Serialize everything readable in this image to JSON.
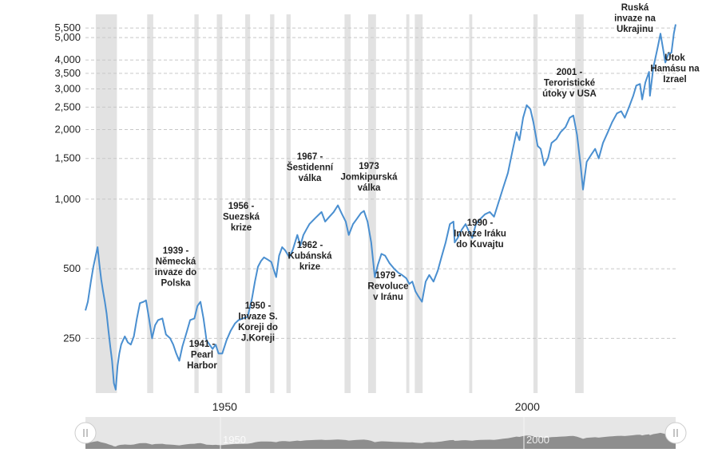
{
  "chart_data": {
    "type": "line",
    "title": "",
    "xlabel": "",
    "ylabel": "",
    "y_scale": "log",
    "grid": "horizontal dashed",
    "xlim": [
      1927,
      2024.5
    ],
    "ylim": [
      145,
      6300
    ],
    "x_ticks": [
      "1950",
      "2000"
    ],
    "y_ticks": [
      {
        "value": 250,
        "label": "250"
      },
      {
        "value": 500,
        "label": "500"
      },
      {
        "value": 1000,
        "label": "1,000"
      },
      {
        "value": 1500,
        "label": "1,500"
      },
      {
        "value": 2000,
        "label": "2,000"
      },
      {
        "value": 2500,
        "label": "2,500"
      },
      {
        "value": 3000,
        "label": "3,000"
      },
      {
        "value": 3500,
        "label": "3,500"
      },
      {
        "value": 4000,
        "label": "4,000"
      },
      {
        "value": 5000,
        "label": "5,000"
      },
      {
        "value": 5500,
        "label": "5,500"
      }
    ],
    "line_color": "#4a8fd0",
    "recession_color": "#e2e2e2",
    "recessions": [
      [
        1928.7,
        1932.2
      ],
      [
        1937.2,
        1938.2
      ],
      [
        1945.0,
        1945.7
      ],
      [
        1948.7,
        1949.6
      ],
      [
        1953.4,
        1954.2
      ],
      [
        1957.5,
        1958.2
      ],
      [
        1960.2,
        1960.9
      ],
      [
        1969.8,
        1970.8
      ],
      [
        1973.7,
        1975.0
      ],
      [
        1980.0,
        1980.5
      ],
      [
        1981.4,
        1982.7
      ],
      [
        1990.4,
        1990.9
      ],
      [
        2001.0,
        2001.7
      ],
      [
        2007.9,
        2009.3
      ]
    ],
    "series": [
      {
        "values": [
          [
            1927.0,
            330
          ],
          [
            1927.4,
            360
          ],
          [
            1927.9,
            440
          ],
          [
            1928.3,
            510
          ],
          [
            1928.7,
            570
          ],
          [
            1929.0,
            620
          ],
          [
            1929.3,
            525
          ],
          [
            1929.6,
            450
          ],
          [
            1929.9,
            400
          ],
          [
            1930.2,
            360
          ],
          [
            1930.5,
            320
          ],
          [
            1930.8,
            270
          ],
          [
            1931.1,
            230
          ],
          [
            1931.4,
            200
          ],
          [
            1931.7,
            160
          ],
          [
            1932.0,
            150
          ],
          [
            1932.3,
            190
          ],
          [
            1932.6,
            215
          ],
          [
            1932.9,
            235
          ],
          [
            1933.2,
            245
          ],
          [
            1933.5,
            255
          ],
          [
            1934.0,
            240
          ],
          [
            1934.5,
            235
          ],
          [
            1935.0,
            255
          ],
          [
            1935.5,
            305
          ],
          [
            1936.0,
            355
          ],
          [
            1936.6,
            360
          ],
          [
            1937.0,
            365
          ],
          [
            1937.5,
            305
          ],
          [
            1938.0,
            250
          ],
          [
            1938.5,
            285
          ],
          [
            1939.0,
            300
          ],
          [
            1939.7,
            305
          ],
          [
            1940.3,
            260
          ],
          [
            1941.0,
            250
          ],
          [
            1941.5,
            235
          ],
          [
            1942.0,
            215
          ],
          [
            1942.5,
            200
          ],
          [
            1943.0,
            230
          ],
          [
            1943.7,
            265
          ],
          [
            1944.3,
            300
          ],
          [
            1945.0,
            305
          ],
          [
            1945.5,
            345
          ],
          [
            1946.0,
            360
          ],
          [
            1946.5,
            305
          ],
          [
            1947.0,
            245
          ],
          [
            1947.5,
            235
          ],
          [
            1948.0,
            225
          ],
          [
            1948.5,
            235
          ],
          [
            1949.0,
            215
          ],
          [
            1949.6,
            215
          ],
          [
            1950.3,
            245
          ],
          [
            1951.0,
            270
          ],
          [
            1951.7,
            290
          ],
          [
            1952.3,
            300
          ],
          [
            1953.0,
            305
          ],
          [
            1953.8,
            310
          ],
          [
            1954.5,
            370
          ],
          [
            1955.0,
            440
          ],
          [
            1955.5,
            510
          ],
          [
            1956.0,
            540
          ],
          [
            1956.5,
            560
          ],
          [
            1957.0,
            550
          ],
          [
            1957.7,
            535
          ],
          [
            1958.5,
            460
          ],
          [
            1959.0,
            570
          ],
          [
            1959.5,
            620
          ],
          [
            1960.0,
            600
          ],
          [
            1960.7,
            560
          ],
          [
            1961.3,
            610
          ],
          [
            1962.0,
            700
          ],
          [
            1962.5,
            630
          ],
          [
            1963.0,
            700
          ],
          [
            1963.5,
            740
          ],
          [
            1964.0,
            780
          ],
          [
            1965.0,
            830
          ],
          [
            1966.0,
            880
          ],
          [
            1966.6,
            800
          ],
          [
            1967.3,
            840
          ],
          [
            1968.0,
            880
          ],
          [
            1968.7,
            940
          ],
          [
            1969.3,
            870
          ],
          [
            1970.0,
            800
          ],
          [
            1970.5,
            700
          ],
          [
            1971.2,
            780
          ],
          [
            1971.8,
            820
          ],
          [
            1972.5,
            870
          ],
          [
            1973.0,
            890
          ],
          [
            1973.6,
            800
          ],
          [
            1974.2,
            650
          ],
          [
            1974.8,
            460
          ],
          [
            1975.3,
            520
          ],
          [
            1975.9,
            580
          ],
          [
            1976.5,
            570
          ],
          [
            1977.2,
            530
          ],
          [
            1978.0,
            500
          ],
          [
            1978.7,
            480
          ],
          [
            1979.3,
            470
          ],
          [
            1980.0,
            455
          ],
          [
            1980.5,
            430
          ],
          [
            1981.0,
            440
          ],
          [
            1981.5,
            400
          ],
          [
            1982.0,
            380
          ],
          [
            1982.6,
            360
          ],
          [
            1983.2,
            440
          ],
          [
            1983.8,
            470
          ],
          [
            1984.5,
            440
          ],
          [
            1985.2,
            490
          ],
          [
            1985.8,
            560
          ],
          [
            1986.5,
            650
          ],
          [
            1987.2,
            780
          ],
          [
            1987.8,
            800
          ],
          [
            1988.0,
            650
          ],
          [
            1988.5,
            680
          ],
          [
            1989.2,
            740
          ],
          [
            1989.8,
            780
          ],
          [
            1990.4,
            720
          ],
          [
            1990.9,
            680
          ],
          [
            1991.5,
            780
          ],
          [
            1992.2,
            820
          ],
          [
            1993.0,
            860
          ],
          [
            1993.8,
            880
          ],
          [
            1994.5,
            840
          ],
          [
            1995.2,
            960
          ],
          [
            1996.0,
            1120
          ],
          [
            1996.8,
            1300
          ],
          [
            1997.5,
            1600
          ],
          [
            1998.2,
            1950
          ],
          [
            1998.7,
            1800
          ],
          [
            1999.3,
            2250
          ],
          [
            1999.9,
            2550
          ],
          [
            2000.5,
            2450
          ],
          [
            2001.0,
            2150
          ],
          [
            2001.7,
            1700
          ],
          [
            2002.2,
            1650
          ],
          [
            2002.8,
            1400
          ],
          [
            2003.4,
            1500
          ],
          [
            2004.0,
            1750
          ],
          [
            2004.8,
            1820
          ],
          [
            2005.5,
            1950
          ],
          [
            2006.3,
            2050
          ],
          [
            2007.0,
            2250
          ],
          [
            2007.6,
            2300
          ],
          [
            2008.2,
            1900
          ],
          [
            2008.8,
            1400
          ],
          [
            2009.2,
            1100
          ],
          [
            2009.8,
            1450
          ],
          [
            2010.5,
            1550
          ],
          [
            2011.2,
            1650
          ],
          [
            2011.8,
            1500
          ],
          [
            2012.5,
            1750
          ],
          [
            2013.3,
            1950
          ],
          [
            2014.0,
            2150
          ],
          [
            2014.8,
            2350
          ],
          [
            2015.5,
            2400
          ],
          [
            2016.1,
            2250
          ],
          [
            2016.8,
            2500
          ],
          [
            2017.5,
            2800
          ],
          [
            2018.0,
            3100
          ],
          [
            2018.6,
            3150
          ],
          [
            2018.97,
            2700
          ],
          [
            2019.5,
            3200
          ],
          [
            2020.1,
            3550
          ],
          [
            2020.25,
            2800
          ],
          [
            2020.8,
            3700
          ],
          [
            2021.5,
            4500
          ],
          [
            2021.99,
            5200
          ],
          [
            2022.4,
            4500
          ],
          [
            2022.8,
            3900
          ],
          [
            2023.3,
            4250
          ],
          [
            2023.8,
            4300
          ],
          [
            2024.2,
            5200
          ],
          [
            2024.5,
            5700
          ]
        ]
      }
    ],
    "annotations": [
      {
        "lines": [
          "1939 -",
          "Německá",
          "invaze do",
          "Polska"
        ]
      },
      {
        "lines": [
          "1941 -",
          "Pearl",
          "Harbor"
        ]
      },
      {
        "lines": [
          "1950 -",
          "Invaze S.",
          "Koreji do",
          "J.Koreji"
        ]
      },
      {
        "lines": [
          "1956 -",
          "Suezská",
          "krize"
        ]
      },
      {
        "lines": [
          "1962 -",
          "Kubánská",
          "krize"
        ]
      },
      {
        "lines": [
          "1967 -",
          "Šestidenní",
          "válka"
        ]
      },
      {
        "lines": [
          "1973",
          "Jomkipurská",
          "válka"
        ]
      },
      {
        "lines": [
          "1979 -",
          "Revoluce",
          "v Iránu"
        ]
      },
      {
        "lines": [
          "1990 -",
          "Invaze Iráku",
          "do Kuvajtu"
        ]
      },
      {
        "lines": [
          "2001 -",
          "Teroristické",
          "útoky v USA"
        ]
      },
      {
        "lines": [
          "Ruská",
          "invaze na",
          "Ukrajinu"
        ]
      },
      {
        "lines": [
          "Útok",
          "Hamásu na",
          "Izrael"
        ]
      }
    ]
  },
  "navigator": {
    "labels": [
      "1950",
      "2000"
    ],
    "left_handle_icon": "drag-handle-icon",
    "right_handle_icon": "drag-handle-icon"
  }
}
